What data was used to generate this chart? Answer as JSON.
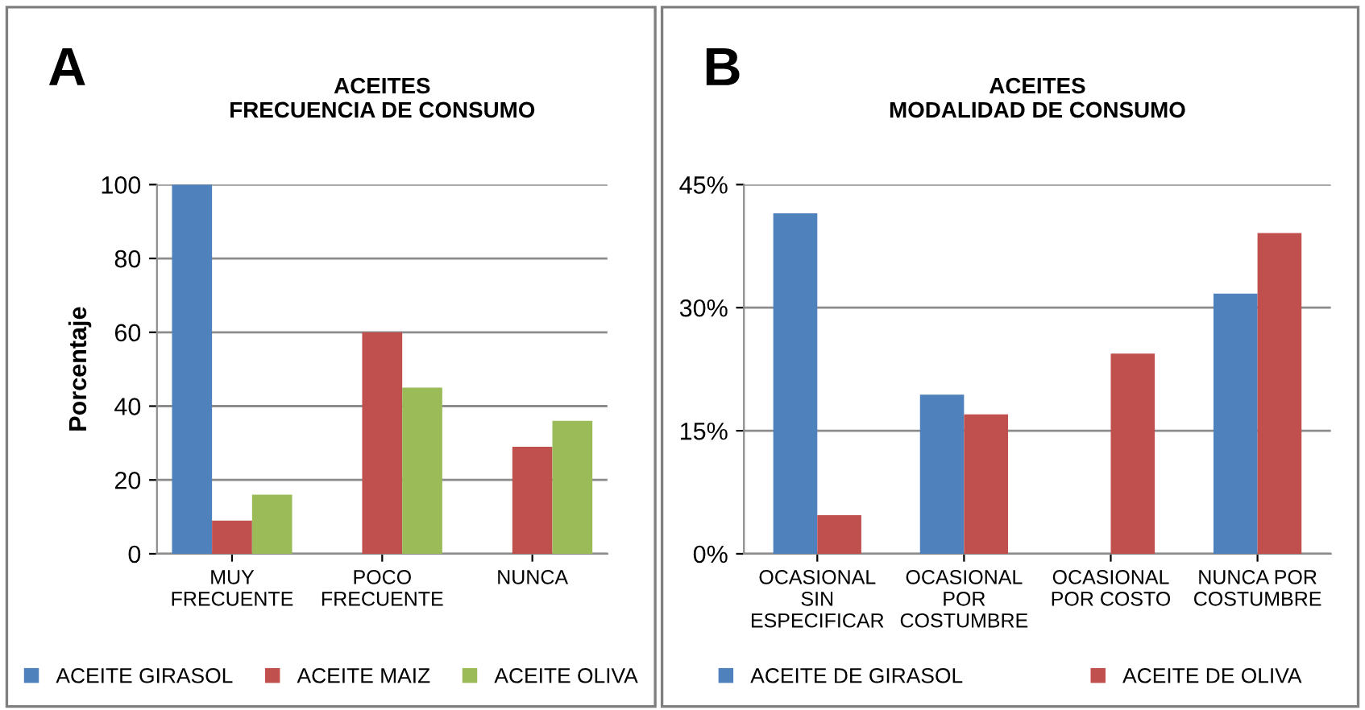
{
  "chart_data": [
    {
      "type": "bar",
      "title": "ACEITES\nFRECUENCIA DE CONSUMO",
      "ylabel": "Porcentaje",
      "annotations": [
        "A"
      ],
      "categories": [
        "MUY\nFRECUENTE",
        "POCO\nFRECUENTE",
        "NUNCA"
      ],
      "series": [
        {
          "name": "ACEITE GIRASOL",
          "color": "#4f81bd",
          "values": [
            100,
            null,
            null
          ]
        },
        {
          "name": "ACEITE MAIZ",
          "color": "#c0504d",
          "values": [
            9,
            60,
            29
          ]
        },
        {
          "name": "ACEITE OLIVA",
          "color": "#9bbb59",
          "values": [
            16,
            45,
            36
          ]
        }
      ],
      "ylim": [
        0,
        100
      ],
      "yticks": [
        0,
        20,
        40,
        60,
        80,
        100
      ],
      "grid": "y",
      "legend": "bottom"
    },
    {
      "type": "bar",
      "title": "ACEITES\nMODALIDAD DE CONSUMO",
      "annotations": [
        "B"
      ],
      "categories": [
        "OCASIONAL\nSIN\nESPECIFICAR",
        "OCASIONAL\nPOR\nCOSTUMBRE",
        "OCASIONAL\nPOR COSTO",
        "NUNCA POR\nCOSTUMBRE"
      ],
      "series": [
        {
          "name": "ACEITE DE GIRASOL",
          "color": "#4f81bd",
          "values": [
            41.5,
            19.4,
            null,
            31.7
          ]
        },
        {
          "name": "ACEITE DE OLIVA",
          "color": "#c0504d",
          "values": [
            4.7,
            17,
            24.4,
            39.1
          ]
        }
      ],
      "ylim": [
        0,
        45
      ],
      "yticks": [
        {
          "value": 0,
          "label": "0%"
        },
        {
          "value": 15,
          "label": "15%"
        },
        {
          "value": 30,
          "label": "30%"
        },
        {
          "value": 45,
          "label": "45%"
        }
      ],
      "grid": "y",
      "legend": "bottom"
    }
  ]
}
